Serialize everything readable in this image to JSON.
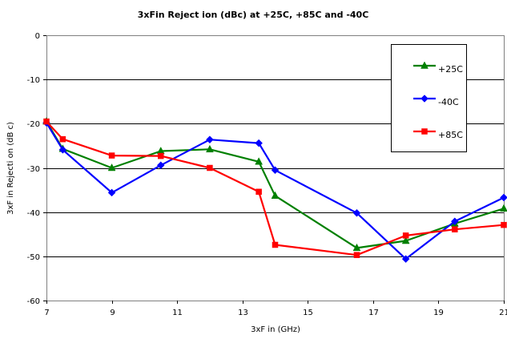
{
  "chart_data": {
    "type": "line",
    "title": "3xFin Reject ion (dBc)  at +25C, +85C and -40C",
    "xlabel": "3xF in (GHz)",
    "ylabel": "3xF in Rejecti  on (dB c)",
    "xlim": [
      7,
      21
    ],
    "ylim": [
      -60,
      0
    ],
    "xticks": [
      "7",
      "9",
      "11",
      "13",
      "15",
      "17",
      "19",
      "21"
    ],
    "yticks": [
      "0",
      "-10",
      "-20",
      "-30",
      "-40",
      "-50",
      "-60"
    ],
    "grid": "horizontal",
    "legend_position": "top-right",
    "series": [
      {
        "name": "+25C",
        "color": "#008000",
        "marker": "triangle",
        "x": [
          7,
          7.5,
          9,
          10.5,
          12,
          13.5,
          14,
          16.5,
          18,
          19.5,
          21
        ],
        "y": [
          -19.5,
          -25.7,
          -30,
          -26.2,
          -25.8,
          -28.6,
          -36.3,
          -48.1,
          -46.5,
          -42.6,
          -39.2
        ]
      },
      {
        "name": "-40C",
        "color": "#0000ff",
        "marker": "diamond",
        "x": [
          7,
          7.5,
          9,
          10.5,
          12,
          13.5,
          14,
          16.5,
          18,
          19.5,
          21
        ],
        "y": [
          -19.8,
          -25.9,
          -35.6,
          -29.4,
          -23.6,
          -24.4,
          -30.5,
          -40.2,
          -50.6,
          -42.1,
          -36.7
        ]
      },
      {
        "name": "+85C",
        "color": "#ff0000",
        "marker": "square",
        "x": [
          7,
          7.5,
          9,
          10.5,
          12,
          13.5,
          14,
          16.5,
          18,
          19.5,
          21
        ],
        "y": [
          -19.5,
          -23.5,
          -27.2,
          -27.3,
          -30,
          -35.4,
          -47.4,
          -49.7,
          -45.3,
          -43.9,
          -42.9
        ]
      }
    ]
  }
}
